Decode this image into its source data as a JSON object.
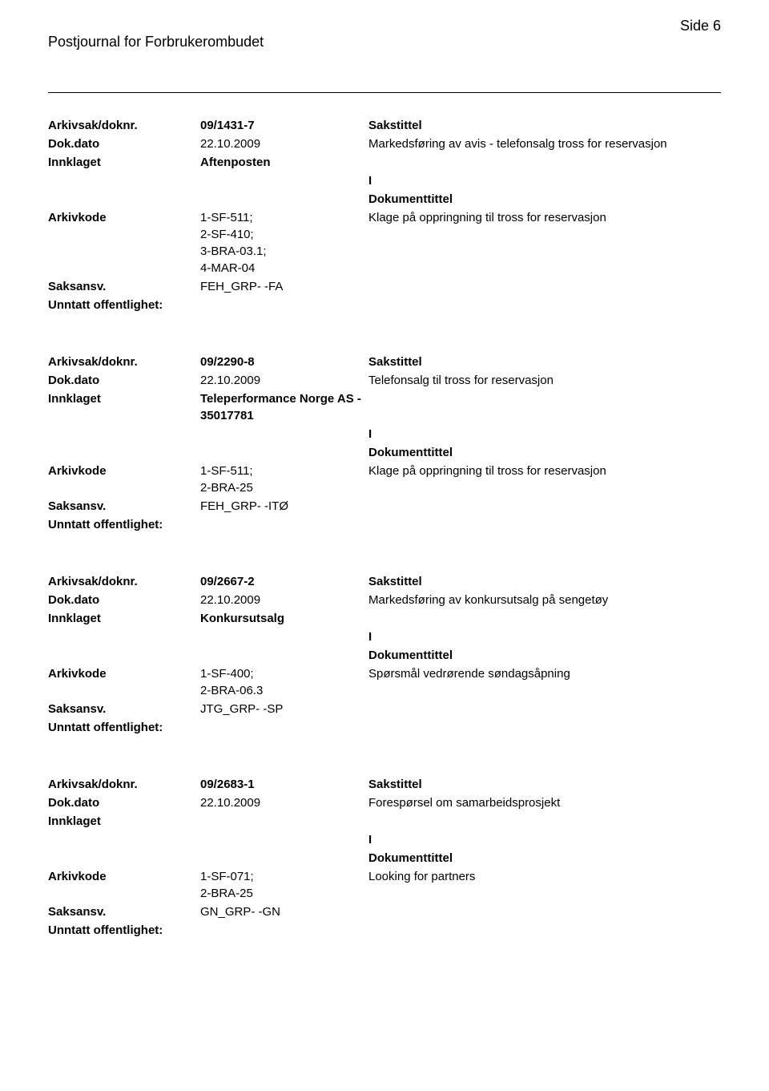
{
  "header": {
    "journal_title": "Postjournal for Forbrukerombudet",
    "page_label": "Side 6"
  },
  "labels": {
    "arkivsak": "Arkivsak/doknr.",
    "dokdato": "Dok.dato",
    "innklaget": "Innklaget",
    "arkivkode": "Arkivkode",
    "saksansv": "Saksansv.",
    "unntatt": "Unntatt offentlighet:",
    "sakstittel": "Sakstittel",
    "dokumenttittel": "Dokumenttittel"
  },
  "records": [
    {
      "arkivsak": "09/1431-7",
      "dokdato": "22.10.2009",
      "innklaget": "Aftenposten",
      "arkivkode": "1-SF-511;\n2-SF-410;\n3-BRA-03.1;\n4-MAR-04",
      "saksansv": "FEH_GRP- -FA",
      "sakstittel": "Markedsføring av avis - telefonsalg tross for reservasjon",
      "dok_i": "I",
      "dokumenttittel": "Klage på oppringning til tross for reservasjon"
    },
    {
      "arkivsak": "09/2290-8",
      "dokdato": "22.10.2009",
      "innklaget": "Teleperformance Norge AS - 35017781",
      "arkivkode": "1-SF-511;\n2-BRA-25",
      "saksansv": "FEH_GRP- -ITØ",
      "sakstittel": "Telefonsalg til tross for reservasjon",
      "dok_i": "I",
      "dokumenttittel": "Klage på oppringning til tross for reservasjon"
    },
    {
      "arkivsak": "09/2667-2",
      "dokdato": "22.10.2009",
      "innklaget": "Konkursutsalg",
      "arkivkode": "1-SF-400;\n2-BRA-06.3",
      "saksansv": "JTG_GRP- -SP",
      "sakstittel": "Markedsføring av konkursutsalg på sengetøy",
      "dok_i": "I",
      "dokumenttittel": "Spørsmål vedrørende søndagsåpning"
    },
    {
      "arkivsak": "09/2683-1",
      "dokdato": "22.10.2009",
      "innklaget": "",
      "arkivkode": "1-SF-071;\n2-BRA-25",
      "saksansv": "GN_GRP- -GN",
      "sakstittel": "Forespørsel om samarbeidsprosjekt",
      "dok_i": "I",
      "dokumenttittel": "Looking for partners"
    }
  ]
}
